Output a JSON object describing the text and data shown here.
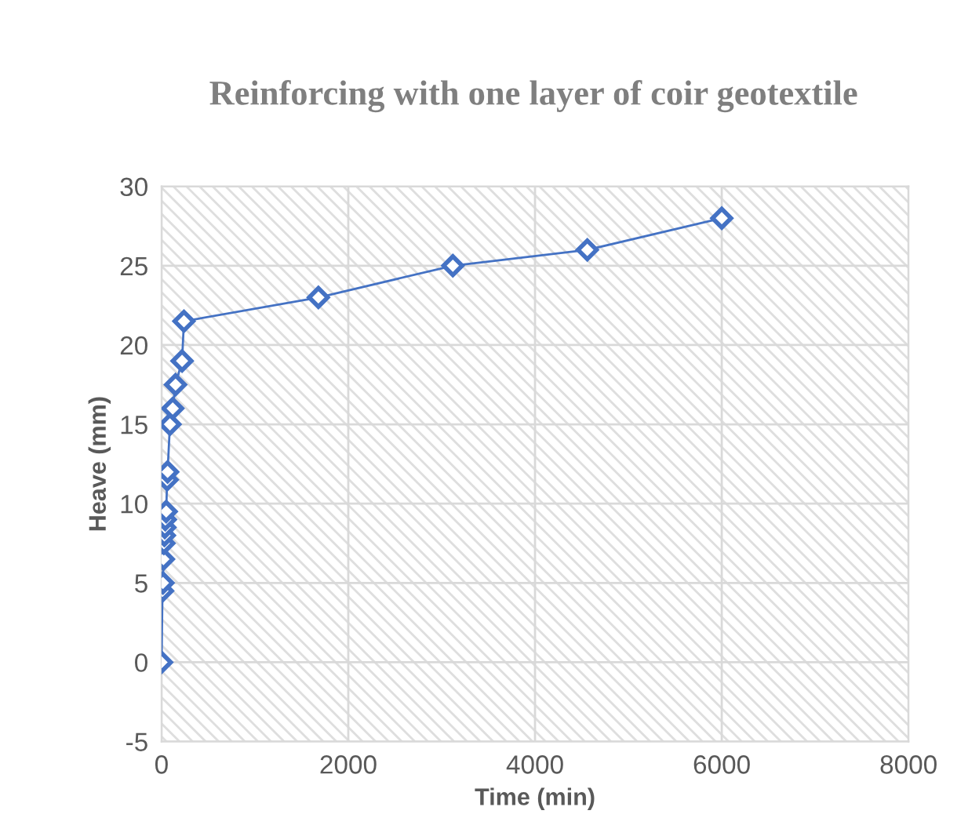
{
  "chart_data": {
    "type": "line",
    "title": "Reinforcing with one layer of coir geotextile",
    "xlabel": "Time (min)",
    "ylabel": "Heave (mm)",
    "series": [
      {
        "color": "#4472c4",
        "x": [
          0,
          10,
          15,
          20,
          25,
          30,
          35,
          40,
          50,
          60,
          65,
          90,
          120,
          150,
          220,
          240,
          1680,
          3120,
          4560,
          6000
        ],
        "values": [
          0,
          4.5,
          5,
          6.5,
          7.5,
          8,
          8.5,
          9,
          9.5,
          11.5,
          12,
          15,
          16,
          17.5,
          19,
          21.5,
          23,
          25,
          26,
          28
        ]
      }
    ],
    "xlim": [
      0,
      8000
    ],
    "xticks": [
      0,
      2000,
      4000,
      6000,
      8000
    ],
    "ylim": [
      -5,
      30
    ],
    "yticks": [
      -5,
      0,
      5,
      10,
      15,
      20,
      25,
      30
    ],
    "grid": true,
    "marker": "diamond",
    "line_style": "solid"
  }
}
